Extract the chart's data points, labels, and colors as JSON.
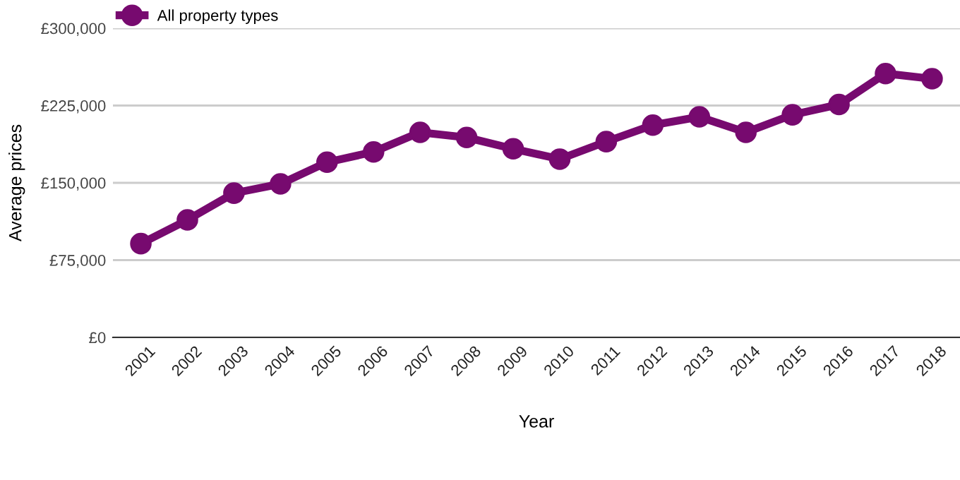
{
  "chart_data": {
    "type": "line",
    "xlabel": "Year",
    "ylabel": "Average prices",
    "categories": [
      "2001",
      "2002",
      "2003",
      "2004",
      "2005",
      "2006",
      "2007",
      "2008",
      "2009",
      "2010",
      "2011",
      "2012",
      "2013",
      "2014",
      "2015",
      "2016",
      "2017",
      "2018"
    ],
    "series": [
      {
        "name": "All property types",
        "color": "#770a6f",
        "values": [
          91000,
          114000,
          140000,
          149000,
          170000,
          180000,
          199000,
          194000,
          183000,
          173000,
          190000,
          206000,
          214000,
          199000,
          216000,
          226000,
          256000,
          251000
        ]
      }
    ],
    "ylim": [
      0,
      300000
    ],
    "yticks": [
      {
        "value": 0,
        "label": "£0"
      },
      {
        "value": 75000,
        "label": "£75,000"
      },
      {
        "value": 150000,
        "label": "£150,000"
      },
      {
        "value": 225000,
        "label": "£225,000"
      },
      {
        "value": 300000,
        "label": "£300,000"
      }
    ],
    "grid": "y",
    "legend": "top left",
    "marker": "circle",
    "line_style": "solid"
  }
}
